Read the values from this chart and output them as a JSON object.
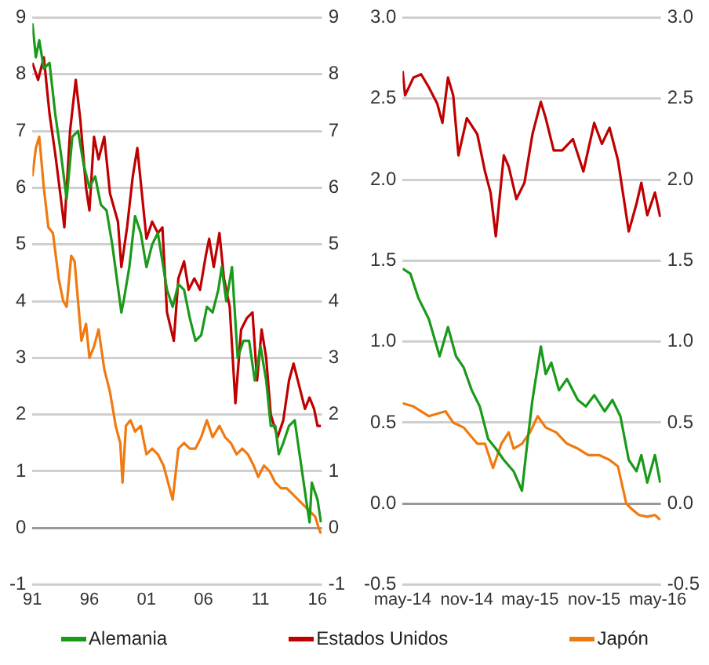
{
  "chart_data": [
    {
      "type": "line",
      "x": [
        1991,
        1991.3,
        1991.6,
        1992,
        1992.5,
        1993,
        1993.5,
        1994,
        1994.5,
        1995,
        1995.5,
        1996,
        1996.5,
        1997,
        1997.5,
        1998,
        1998.8,
        1999,
        1999.5,
        2000,
        2000.5,
        2001,
        2001.5,
        2002,
        2002.8,
        2003.3,
        2003.8,
        2004.3,
        2004.8,
        2005.3,
        2005.8,
        2006.3,
        2006.8,
        2007.3,
        2007.6,
        2008,
        2008.5,
        2009,
        2009.5,
        2010,
        2010.5,
        2011,
        2011.5,
        2011.9,
        2012.3,
        2012.6,
        2013,
        2013.5,
        2014,
        2014.5,
        2015,
        2015.3,
        2015.5,
        2016,
        2016.3
      ],
      "xlim": [
        1991,
        2016.4
      ],
      "xticks": [
        {
          "value": 1991,
          "label": "91"
        },
        {
          "value": 1996,
          "label": "96"
        },
        {
          "value": 2001,
          "label": "01"
        },
        {
          "value": 2006,
          "label": "06"
        },
        {
          "value": 2011,
          "label": "11"
        },
        {
          "value": 2016,
          "label": "16"
        }
      ],
      "ylim": [
        -1,
        9
      ],
      "yticks": [
        -1,
        0,
        1,
        2,
        3,
        4,
        5,
        6,
        7,
        8,
        9
      ],
      "y2lim": [
        -1,
        9
      ],
      "y2ticks": [
        -1,
        0,
        1,
        2,
        3,
        4,
        5,
        6,
        7,
        8,
        9
      ],
      "grid": "y",
      "legend": "bottom",
      "marker": "none",
      "series": [
        {
          "name": "Alemania",
          "color": "#1a9a1a",
          "values": [
            8.9,
            8.3,
            8.6,
            8.1,
            8.2,
            7.3,
            6.6,
            5.8,
            6.9,
            7.0,
            6.4,
            6.0,
            6.2,
            5.7,
            5.6,
            5.0,
            3.8,
            4.0,
            4.6,
            5.5,
            5.2,
            4.6,
            5.0,
            5.2,
            4.2,
            3.9,
            4.3,
            4.2,
            3.7,
            3.3,
            3.4,
            3.9,
            3.8,
            4.2,
            4.6,
            4.0,
            4.6,
            3.0,
            3.3,
            3.3,
            2.6,
            3.2,
            2.6,
            1.8,
            1.8,
            1.3,
            1.5,
            1.8,
            1.9,
            1.2,
            0.5,
            0.1,
            0.8,
            0.5,
            0.1
          ]
        },
        {
          "name": "Estados Unidos",
          "color": "#c00000",
          "x": [
            1991,
            1991.5,
            1992,
            1992.5,
            1993,
            1993.5,
            1993.8,
            1994.3,
            1994.8,
            1995.2,
            1995.7,
            1996,
            1996.4,
            1996.8,
            1997.3,
            1997.8,
            1998.5,
            1998.8,
            1999.3,
            1999.8,
            2000.2,
            2000.6,
            2001,
            2001.5,
            2002,
            2002.4,
            2002.8,
            2003.4,
            2003.8,
            2004.3,
            2004.7,
            2005.2,
            2005.7,
            2006.2,
            2006.5,
            2006.9,
            2007.4,
            2007.8,
            2008.3,
            2008.8,
            2009.3,
            2009.8,
            2010.3,
            2010.7,
            2011.1,
            2011.5,
            2011.9,
            2012.5,
            2013,
            2013.5,
            2013.9,
            2014.4,
            2014.9,
            2015.3,
            2015.7,
            2016,
            2016.3
          ],
          "values": [
            8.2,
            7.9,
            8.3,
            7.3,
            6.6,
            5.8,
            5.3,
            7.0,
            7.9,
            7.2,
            6.0,
            5.6,
            6.9,
            6.5,
            6.9,
            5.9,
            5.4,
            4.6,
            5.3,
            6.2,
            6.7,
            5.9,
            5.1,
            5.4,
            5.2,
            5.3,
            3.8,
            3.3,
            4.4,
            4.7,
            4.2,
            4.4,
            4.2,
            4.8,
            5.1,
            4.6,
            5.2,
            4.4,
            3.9,
            2.2,
            3.5,
            3.7,
            3.8,
            2.6,
            3.5,
            3.0,
            2.0,
            1.6,
            1.9,
            2.6,
            2.9,
            2.5,
            2.1,
            2.3,
            2.1,
            1.8,
            1.8
          ]
        },
        {
          "name": "Japón",
          "color": "#f07a10",
          "x": [
            1991,
            1991.3,
            1991.6,
            1992,
            1992.4,
            1992.8,
            1993.3,
            1993.7,
            1994,
            1994.4,
            1994.7,
            1995,
            1995.3,
            1995.7,
            1996,
            1996.4,
            1996.8,
            1997.3,
            1997.8,
            1998.3,
            1998.7,
            1998.9,
            1999.2,
            1999.6,
            2000,
            2000.5,
            2001,
            2001.5,
            2002,
            2002.5,
            2003.3,
            2003.8,
            2004.3,
            2004.8,
            2005.3,
            2005.8,
            2006.3,
            2006.8,
            2007.4,
            2007.9,
            2008.4,
            2008.9,
            2009.4,
            2009.9,
            2010.4,
            2010.8,
            2011.3,
            2011.8,
            2012.3,
            2012.8,
            2013.3,
            2013.8,
            2014.3,
            2014.8,
            2015.3,
            2015.8,
            2016.1,
            2016.3
          ],
          "values": [
            6.2,
            6.7,
            6.9,
            6.0,
            5.3,
            5.2,
            4.4,
            4.0,
            3.9,
            4.8,
            4.7,
            4.0,
            3.3,
            3.6,
            3.0,
            3.2,
            3.5,
            2.8,
            2.4,
            1.8,
            1.5,
            0.8,
            1.8,
            1.9,
            1.7,
            1.8,
            1.3,
            1.4,
            1.3,
            1.1,
            0.5,
            1.4,
            1.5,
            1.4,
            1.4,
            1.6,
            1.9,
            1.6,
            1.8,
            1.6,
            1.5,
            1.3,
            1.4,
            1.3,
            1.1,
            0.9,
            1.1,
            1.0,
            0.8,
            0.7,
            0.7,
            0.6,
            0.5,
            0.4,
            0.3,
            0.2,
            0.0,
            -0.1
          ]
        }
      ]
    },
    {
      "type": "line",
      "xlim": [
        "2014-05-01",
        "2016-05-10"
      ],
      "xticks": [
        {
          "value": "2014-05-01",
          "label": "may-14"
        },
        {
          "value": "2014-11-01",
          "label": "nov-14"
        },
        {
          "value": "2015-05-01",
          "label": "may-15"
        },
        {
          "value": "2015-11-01",
          "label": "nov-15"
        },
        {
          "value": "2016-05-01",
          "label": "may-16"
        }
      ],
      "ylim": [
        -0.5,
        3
      ],
      "yticks": [
        -0.5,
        {
          "value": 0,
          "label": "0.0"
        },
        0.5,
        {
          "value": 1,
          "label": "1.0"
        },
        1.5,
        {
          "value": 2,
          "label": "2.0"
        },
        2.5,
        {
          "value": 3,
          "label": "3.0"
        }
      ],
      "y2lim": [
        -0.5,
        3
      ],
      "y2ticks": [
        -0.5,
        {
          "value": 0,
          "label": "0.0"
        },
        0.5,
        {
          "value": 1,
          "label": "1.0"
        },
        1.5,
        {
          "value": 2,
          "label": "2.0"
        },
        2.5,
        {
          "value": 3,
          "label": "3.0"
        }
      ],
      "grid": "y",
      "marker": "none",
      "series": [
        {
          "color": "#1a9a1a",
          "x": [
            "2014-05-01",
            "2014-05-23",
            "2014-06-15",
            "2014-07-15",
            "2014-08-15",
            "2014-09-08",
            "2014-10-01",
            "2014-10-23",
            "2014-11-15",
            "2014-12-08",
            "2015-01-01",
            "2015-01-23",
            "2015-02-15",
            "2015-03-15",
            "2015-04-08",
            "2015-04-23",
            "2015-05-08",
            "2015-06-01",
            "2015-06-15",
            "2015-07-01",
            "2015-07-23",
            "2015-08-15",
            "2015-09-15",
            "2015-10-08",
            "2015-11-01",
            "2015-12-01",
            "2015-12-23",
            "2016-01-15",
            "2016-02-08",
            "2016-03-01",
            "2016-03-15",
            "2016-04-01",
            "2016-04-23",
            "2016-05-08"
          ],
          "values": [
            1.45,
            1.42,
            1.27,
            1.14,
            0.91,
            1.09,
            0.91,
            0.84,
            0.7,
            0.6,
            0.4,
            0.34,
            0.27,
            0.2,
            0.08,
            0.37,
            0.64,
            0.97,
            0.8,
            0.87,
            0.7,
            0.77,
            0.64,
            0.6,
            0.67,
            0.57,
            0.64,
            0.54,
            0.27,
            0.2,
            0.3,
            0.13,
            0.3,
            0.13
          ]
        },
        {
          "color": "#c00000",
          "x": [
            "2014-05-01",
            "2014-05-08",
            "2014-06-01",
            "2014-06-23",
            "2014-07-15",
            "2014-08-08",
            "2014-08-23",
            "2014-09-08",
            "2014-09-23",
            "2014-10-08",
            "2014-11-01",
            "2014-12-01",
            "2014-12-23",
            "2015-01-08",
            "2015-01-23",
            "2015-02-15",
            "2015-03-01",
            "2015-03-23",
            "2015-04-15",
            "2015-05-08",
            "2015-06-01",
            "2015-06-15",
            "2015-07-08",
            "2015-08-01",
            "2015-09-01",
            "2015-10-01",
            "2015-11-01",
            "2015-11-23",
            "2015-12-15",
            "2016-01-08",
            "2016-02-08",
            "2016-03-01",
            "2016-03-15",
            "2016-04-01",
            "2016-04-23",
            "2016-05-08"
          ],
          "values": [
            2.67,
            2.52,
            2.63,
            2.65,
            2.57,
            2.47,
            2.35,
            2.63,
            2.52,
            2.15,
            2.38,
            2.28,
            2.05,
            1.92,
            1.65,
            2.15,
            2.08,
            1.88,
            1.98,
            2.28,
            2.48,
            2.38,
            2.18,
            2.18,
            2.25,
            2.05,
            2.35,
            2.22,
            2.32,
            2.12,
            1.68,
            1.85,
            1.98,
            1.78,
            1.92,
            1.77
          ]
        },
        {
          "color": "#f07a10",
          "x": [
            "2014-05-01",
            "2014-06-01",
            "2014-07-15",
            "2014-09-01",
            "2014-09-23",
            "2014-10-23",
            "2014-12-01",
            "2014-12-23",
            "2015-01-15",
            "2015-02-08",
            "2015-03-01",
            "2015-03-15",
            "2015-04-08",
            "2015-05-01",
            "2015-05-23",
            "2015-06-15",
            "2015-07-15",
            "2015-08-15",
            "2015-09-15",
            "2015-10-15",
            "2015-11-15",
            "2015-12-15",
            "2016-01-08",
            "2016-02-01",
            "2016-02-15",
            "2016-03-08",
            "2016-04-01",
            "2016-04-23",
            "2016-05-08"
          ],
          "values": [
            0.62,
            0.6,
            0.54,
            0.57,
            0.5,
            0.47,
            0.37,
            0.37,
            0.22,
            0.37,
            0.44,
            0.34,
            0.37,
            0.44,
            0.54,
            0.47,
            0.44,
            0.37,
            0.34,
            0.3,
            0.3,
            0.27,
            0.23,
            0,
            -0.03,
            -0.07,
            -0.08,
            -0.07,
            -0.1
          ]
        }
      ]
    }
  ]
}
